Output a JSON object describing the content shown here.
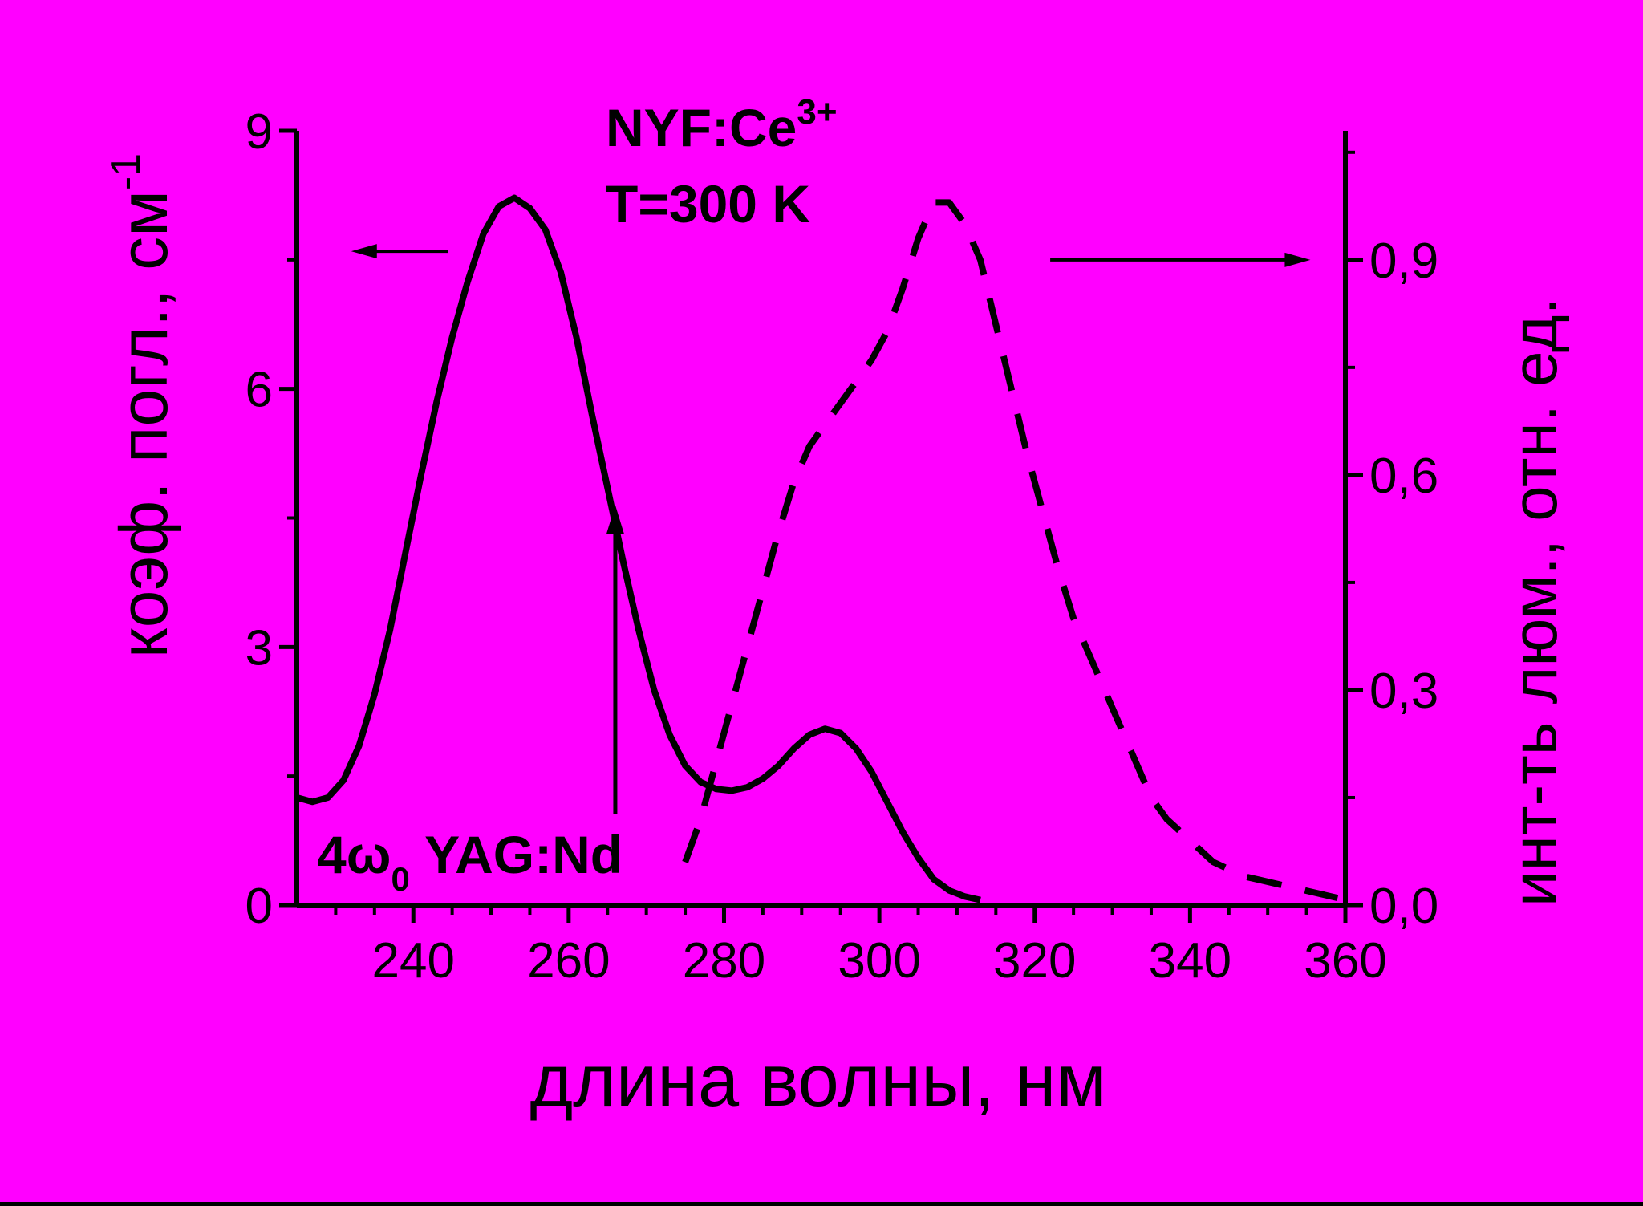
{
  "colors": {
    "background": "#000000",
    "plot_background": "#FF00FF",
    "ink": "#000000"
  },
  "chart_data": {
    "type": "line",
    "x_axis": {
      "label": "длина волны, нм",
      "range": [
        225,
        360
      ],
      "ticks": [
        240,
        260,
        280,
        300,
        320,
        340,
        360
      ],
      "tick_labels": [
        "240",
        "260",
        "280",
        "300",
        "320",
        "340",
        "360"
      ]
    },
    "y_axis_left": {
      "label_main": "коэф. погл., см",
      "label_superscript": "-1",
      "range": [
        0,
        9
      ],
      "ticks": [
        0,
        3,
        6,
        9
      ],
      "tick_labels": [
        "0",
        "3",
        "6",
        "9"
      ]
    },
    "y_axis_right": {
      "label": "инт-ть люм., отн. ед.",
      "range": [
        0,
        1.08
      ],
      "ticks": [
        0,
        0.3,
        0.6,
        0.9
      ],
      "tick_labels": [
        "0,0",
        "0,3",
        "0,6",
        "0,9"
      ]
    },
    "series": [
      {
        "style": "solid",
        "axis": "left",
        "points": [
          [
            225,
            1.25
          ],
          [
            227,
            1.2
          ],
          [
            229,
            1.25
          ],
          [
            231,
            1.45
          ],
          [
            233,
            1.85
          ],
          [
            235,
            2.45
          ],
          [
            237,
            3.2
          ],
          [
            239,
            4.1
          ],
          [
            241,
            5.0
          ],
          [
            243,
            5.85
          ],
          [
            245,
            6.6
          ],
          [
            247,
            7.25
          ],
          [
            249,
            7.8
          ],
          [
            251,
            8.12
          ],
          [
            253,
            8.22
          ],
          [
            255,
            8.1
          ],
          [
            257,
            7.85
          ],
          [
            259,
            7.35
          ],
          [
            261,
            6.6
          ],
          [
            263,
            5.7
          ],
          [
            265,
            4.85
          ],
          [
            267,
            4.0
          ],
          [
            269,
            3.2
          ],
          [
            271,
            2.5
          ],
          [
            273,
            1.98
          ],
          [
            275,
            1.62
          ],
          [
            277,
            1.43
          ],
          [
            279,
            1.35
          ],
          [
            281,
            1.33
          ],
          [
            283,
            1.37
          ],
          [
            285,
            1.47
          ],
          [
            287,
            1.62
          ],
          [
            289,
            1.82
          ],
          [
            291,
            1.98
          ],
          [
            293,
            2.05
          ],
          [
            295,
            2.0
          ],
          [
            297,
            1.82
          ],
          [
            299,
            1.55
          ],
          [
            301,
            1.2
          ],
          [
            303,
            0.85
          ],
          [
            305,
            0.55
          ],
          [
            307,
            0.3
          ],
          [
            309,
            0.17
          ],
          [
            311,
            0.1
          ],
          [
            313,
            0.06
          ]
        ]
      },
      {
        "style": "dashed",
        "axis": "right",
        "points": [
          [
            275,
            0.06
          ],
          [
            277,
            0.12
          ],
          [
            279,
            0.2
          ],
          [
            281,
            0.28
          ],
          [
            283,
            0.36
          ],
          [
            285,
            0.44
          ],
          [
            287,
            0.52
          ],
          [
            289,
            0.59
          ],
          [
            291,
            0.64
          ],
          [
            293,
            0.67
          ],
          [
            295,
            0.7
          ],
          [
            297,
            0.73
          ],
          [
            299,
            0.76
          ],
          [
            301,
            0.8
          ],
          [
            303,
            0.86
          ],
          [
            305,
            0.93
          ],
          [
            307,
            0.98
          ],
          [
            309,
            0.98
          ],
          [
            311,
            0.95
          ],
          [
            313,
            0.9
          ],
          [
            315,
            0.81
          ],
          [
            317,
            0.72
          ],
          [
            319,
            0.63
          ],
          [
            321,
            0.55
          ],
          [
            323,
            0.47
          ],
          [
            325,
            0.4
          ],
          [
            327,
            0.35
          ],
          [
            329,
            0.3
          ],
          [
            331,
            0.25
          ],
          [
            333,
            0.2
          ],
          [
            335,
            0.15
          ],
          [
            337,
            0.12
          ],
          [
            339,
            0.1
          ],
          [
            341,
            0.08
          ],
          [
            343,
            0.06
          ],
          [
            345,
            0.05
          ],
          [
            347,
            0.04
          ],
          [
            349,
            0.035
          ],
          [
            351,
            0.03
          ],
          [
            353,
            0.025
          ],
          [
            355,
            0.02
          ],
          [
            357,
            0.015
          ],
          [
            359,
            0.01
          ]
        ]
      }
    ],
    "annotations": {
      "compound_main": "NYF:Ce",
      "compound_superscript": "3+",
      "temperature": "T=300 K",
      "laser_prefix": "4ω",
      "laser_subscript": "0",
      "laser_suffix": " YAG:Nd",
      "laser_wavelength": 266,
      "laser_arrow_top": 4.65,
      "left_arrow": {
        "x_from": 244.5,
        "x_to": 232,
        "y": 7.6
      },
      "right_arrow": {
        "x_from": 322,
        "x_to": 355.5,
        "y": 0.9
      }
    }
  }
}
